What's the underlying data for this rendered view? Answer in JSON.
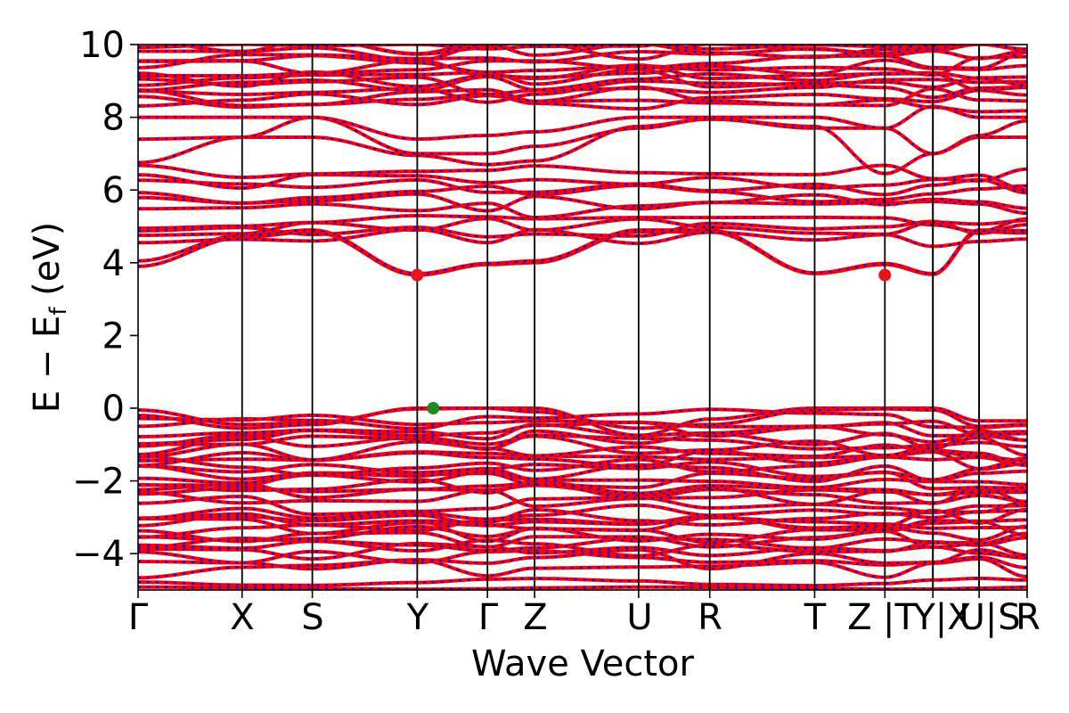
{
  "chart_data": {
    "type": "line",
    "xlabel": "Wave Vector",
    "ylabel": "E − E_f (eV)",
    "ylabel_main": "E − E",
    "ylabel_sub": "f",
    "ylabel_unit": " (eV)",
    "ylim": [
      -5,
      10
    ],
    "yticks": [
      10,
      8,
      6,
      4,
      2,
      0,
      -2,
      -4
    ],
    "ytick_labels": [
      "10",
      "8",
      "6",
      "4",
      "2",
      "0",
      "−2",
      "−4"
    ],
    "xlim": [
      0,
      100
    ],
    "high_symmetry_points": [
      {
        "label": "Γ",
        "x": 0
      },
      {
        "label": "X",
        "x": 11.7
      },
      {
        "label": "S",
        "x": 19.6
      },
      {
        "label": "Y",
        "x": 31.4
      },
      {
        "label": "Γ",
        "x": 39.3
      },
      {
        "label": "Z",
        "x": 44.6
      },
      {
        "label": "U",
        "x": 56.3
      },
      {
        "label": "R",
        "x": 64.3
      },
      {
        "label": "T",
        "x": 76.1
      },
      {
        "label": "Z",
        "x": 84.0
      },
      {
        "label": "|T",
        "x": 84.0
      },
      {
        "label": "Y|X",
        "x": 89.4
      },
      {
        "label": "U|",
        "x": 94.6
      },
      {
        "label": "S",
        "x": 100
      },
      {
        "label": "R",
        "x": 100
      }
    ],
    "x_tick_label_text": [
      "Γ",
      "X",
      "S",
      "Y",
      "Γ",
      "Z",
      "U",
      "R",
      "T",
      "Z",
      "|T",
      "Y|X",
      "U|",
      "S",
      "R"
    ],
    "series": [
      {
        "color": "#ff0000",
        "style": "solid"
      },
      {
        "color": "#0000ff",
        "style": "dashed"
      }
    ],
    "markers": [
      {
        "x": 31.4,
        "y": 3.66,
        "color": "#e8131b"
      },
      {
        "x": 84.0,
        "y": 3.66,
        "color": "#e8131b"
      },
      {
        "x": 33.2,
        "y": 0.0,
        "color": "#1f8a1f"
      }
    ]
  }
}
